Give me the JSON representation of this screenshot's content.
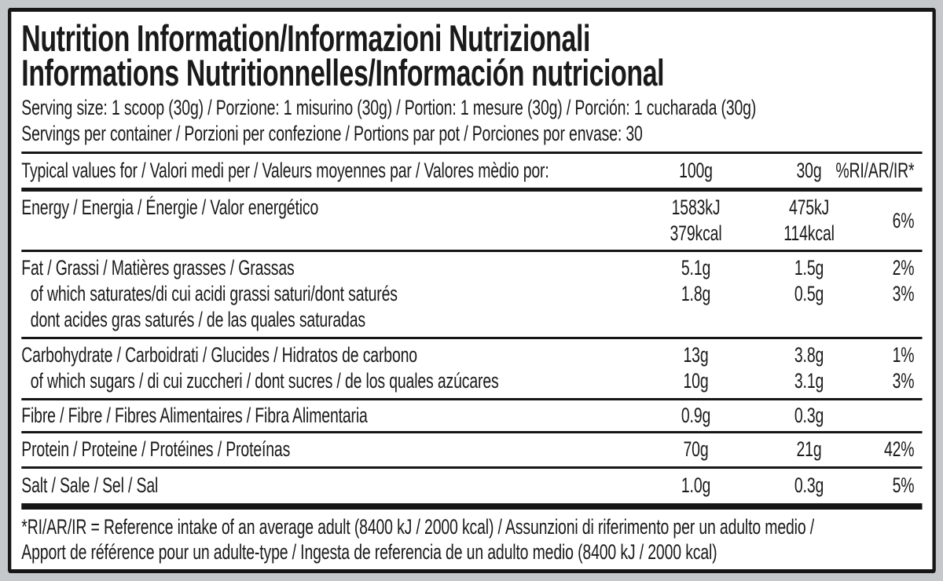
{
  "colors": {
    "ink": "#1a1a1a",
    "paper": "#ffffff",
    "background": "#c4c8ca"
  },
  "label": {
    "title_lines": [
      "Nutrition Information/Informazioni Nutrizionali",
      "Informations Nutritionnelles/Información nutricional"
    ],
    "serving_lines": [
      "Serving size: 1 scoop (30g) / Porzione: 1 misurino (30g) / Portion: 1 mesure (30g) / Porción: 1 cucharada (30g)",
      "Servings per container / Porzioni per confezione / Portions par pot / Porciones por envase: 30"
    ],
    "header": {
      "label": "Typical values for / Valori medi per / Valeurs moyennes par / Valores mèdio por:",
      "per100": "100g",
      "per30": "30g",
      "ri": "%RI/AR/IR*"
    },
    "energy": {
      "label": "Energy / Energia / Énergie / Valor energético",
      "per100": [
        "1583kJ",
        "379kcal"
      ],
      "per30": [
        "475kJ",
        "114kcal"
      ],
      "ri": "6%"
    },
    "groups": [
      {
        "rows": [
          {
            "label": "Fat / Grassi / Matières grasses / Grassas",
            "per100": "5.1g",
            "per30": "1.5g",
            "ri": "2%",
            "indent": false
          },
          {
            "label": "of which saturates/di cui acidi grassi saturi/dont saturés",
            "per100": "1.8g",
            "per30": "0.5g",
            "ri": "3%",
            "indent": true
          },
          {
            "label": "dont acides gras saturés / de las quales saturadas",
            "per100": "",
            "per30": "",
            "ri": "",
            "indent": true
          }
        ]
      },
      {
        "rows": [
          {
            "label": "Carbohydrate / Carboidrati / Glucides / Hidratos de carbono",
            "per100": "13g",
            "per30": "3.8g",
            "ri": "1%",
            "indent": false
          },
          {
            "label": "of which sugars / di cui zuccheri / dont sucres / de los quales azúcares",
            "per100": "10g",
            "per30": "3.1g",
            "ri": "3%",
            "indent": true
          }
        ]
      },
      {
        "rows": [
          {
            "label": "Fibre / Fibre / Fibres Alimentaires / Fibra Alimentaria",
            "per100": "0.9g",
            "per30": "0.3g",
            "ri": "",
            "indent": false
          }
        ]
      },
      {
        "rows": [
          {
            "label": "Protein / Proteine / Protéines / Proteínas",
            "per100": "70g",
            "per30": "21g",
            "ri": "42%",
            "indent": false
          }
        ]
      },
      {
        "rows": [
          {
            "label": "Salt / Sale / Sel / Sal",
            "per100": "1.0g",
            "per30": "0.3g",
            "ri": "5%",
            "indent": false
          }
        ]
      }
    ],
    "footnote_lines": [
      "*RI/AR/IR = Reference intake of an average adult (8400 kJ / 2000 kcal)  / Assunzioni di riferimento per un adulto medio /",
      "Apport de référence pour un adulte-type / Ingesta de referencia de un adulto medio (8400 kJ / 2000 kcal)"
    ]
  }
}
